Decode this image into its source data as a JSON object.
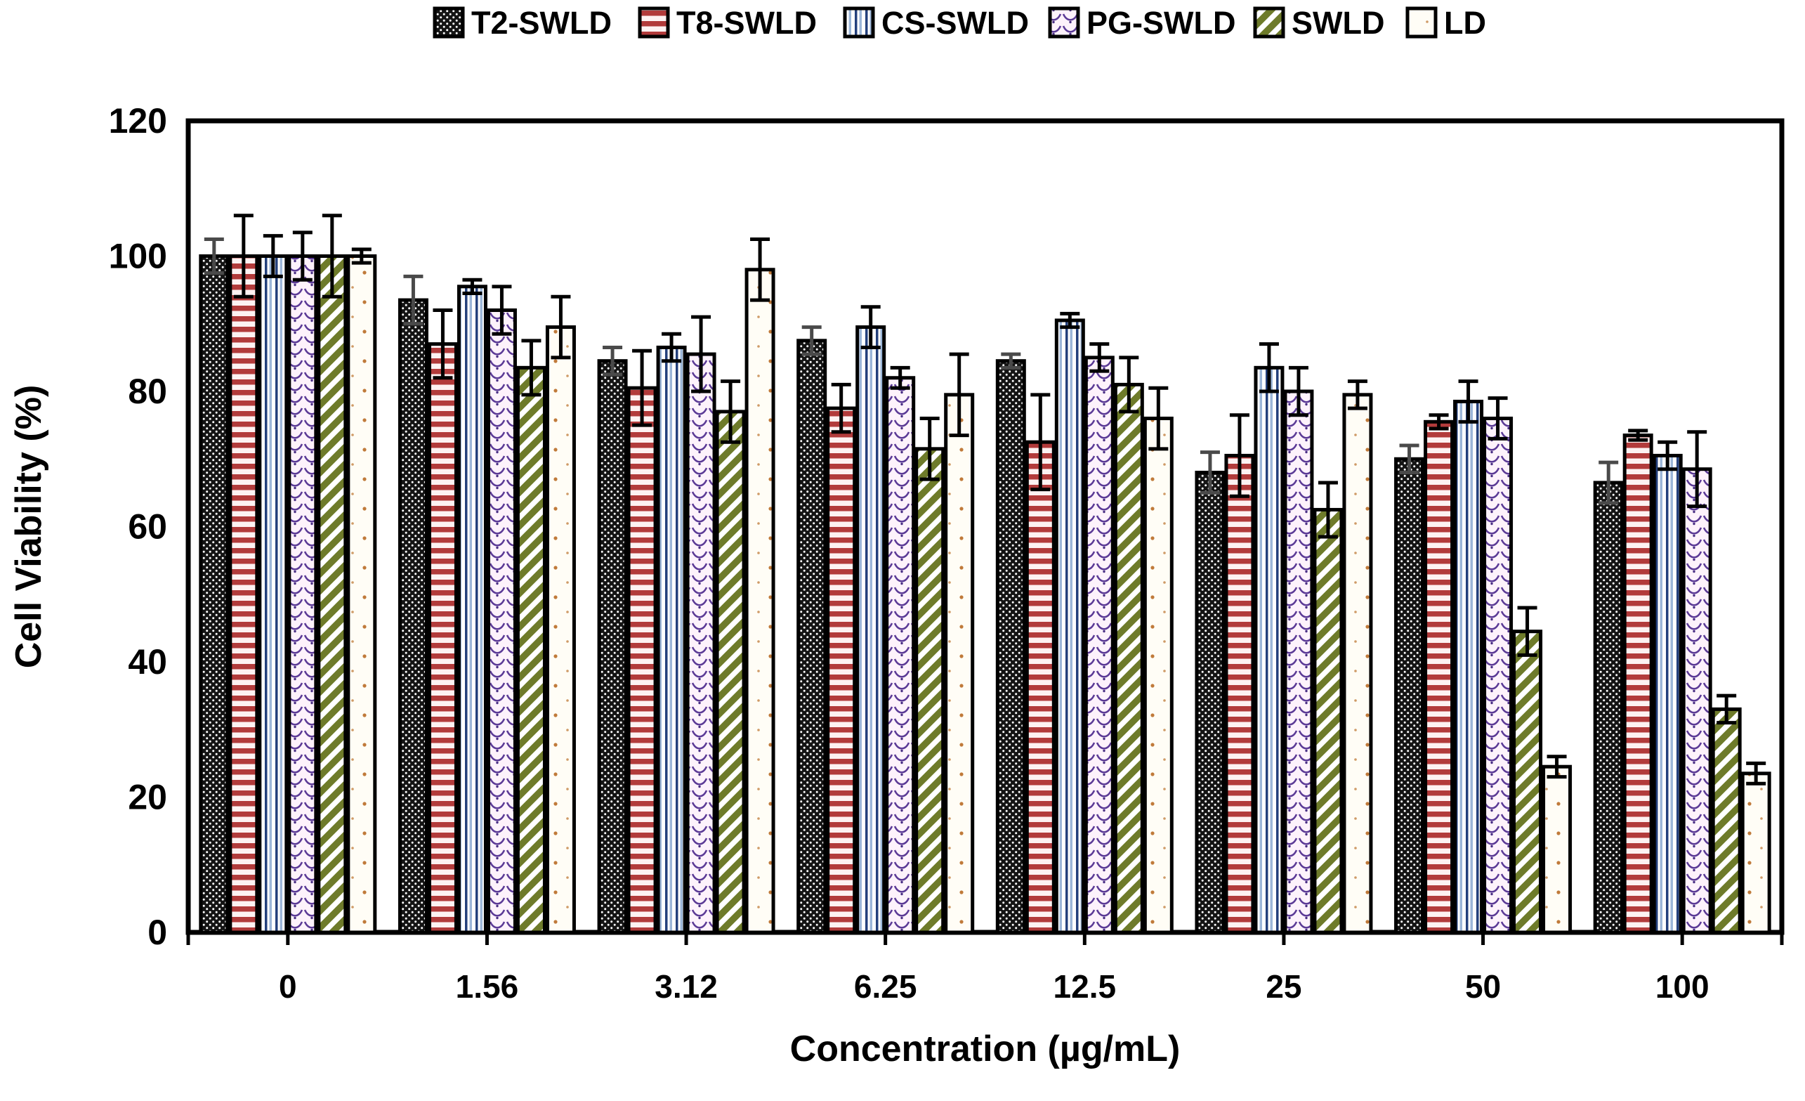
{
  "figure": {
    "background": "#ffffff",
    "frame_color": "#000000"
  },
  "chart_data": {
    "type": "bar",
    "title": "",
    "xlabel": "Concentration (µg/mL)",
    "ylabel": "Cell Viability (%)",
    "ylim": [
      0,
      120
    ],
    "ytick_step": 20,
    "ytick_labels": [
      "0",
      "20",
      "40",
      "60",
      "80",
      "100",
      "120"
    ],
    "grid": false,
    "legend_position": "top-center",
    "error_bars": true,
    "categories": [
      "0",
      "1.56",
      "3.12",
      "6.25",
      "12.5",
      "25",
      "50",
      "100"
    ],
    "series": [
      {
        "name": "T2-SWLD",
        "pattern": "checker-dots",
        "color": "#141414",
        "error_color": "#4a4a4a",
        "values": [
          100,
          93.5,
          84.5,
          87.5,
          84.5,
          68,
          70,
          66.5
        ],
        "errors": [
          2.5,
          3.5,
          2,
          2,
          1,
          3,
          2,
          3
        ]
      },
      {
        "name": "T8-SWLD",
        "pattern": "h-stripes",
        "color": "#b23b3b",
        "error_color": "#000000",
        "values": [
          100,
          87,
          80.5,
          77.5,
          72.5,
          70.5,
          75.5,
          73.5
        ],
        "errors": [
          6,
          5,
          5.5,
          3.5,
          7,
          6,
          1,
          0.7
        ]
      },
      {
        "name": "CS-SWLD",
        "pattern": "v-stripes",
        "color": "#24407c",
        "error_color": "#000000",
        "values": [
          100,
          95.5,
          86.5,
          89.5,
          90.5,
          83.5,
          78.5,
          70.5
        ],
        "errors": [
          3,
          1,
          2,
          3,
          1,
          3.5,
          3,
          2
        ]
      },
      {
        "name": "PG-SWLD",
        "pattern": "scales",
        "color": "#5b3a96",
        "error_color": "#000000",
        "values": [
          100,
          92,
          85.5,
          82,
          85,
          80,
          76,
          68.5
        ],
        "errors": [
          3.5,
          3.5,
          5.5,
          1.5,
          2,
          3.5,
          3,
          5.5
        ]
      },
      {
        "name": "SWLD",
        "pattern": "diag-stripes",
        "color": "#6e7b2a",
        "error_color": "#000000",
        "values": [
          100,
          83.5,
          77,
          71.5,
          81,
          62.5,
          44.5,
          33
        ],
        "errors": [
          6,
          4,
          4.5,
          4.5,
          4,
          4,
          3.5,
          2
        ]
      },
      {
        "name": "LD",
        "pattern": "sparse-dots",
        "color": "#c07a3a",
        "error_color": "#000000",
        "values": [
          100,
          89.5,
          98,
          79.5,
          76,
          79.5,
          24.5,
          23.5
        ],
        "errors": [
          1,
          4.5,
          4.5,
          6,
          4.5,
          2,
          1.5,
          1.5
        ]
      }
    ]
  }
}
